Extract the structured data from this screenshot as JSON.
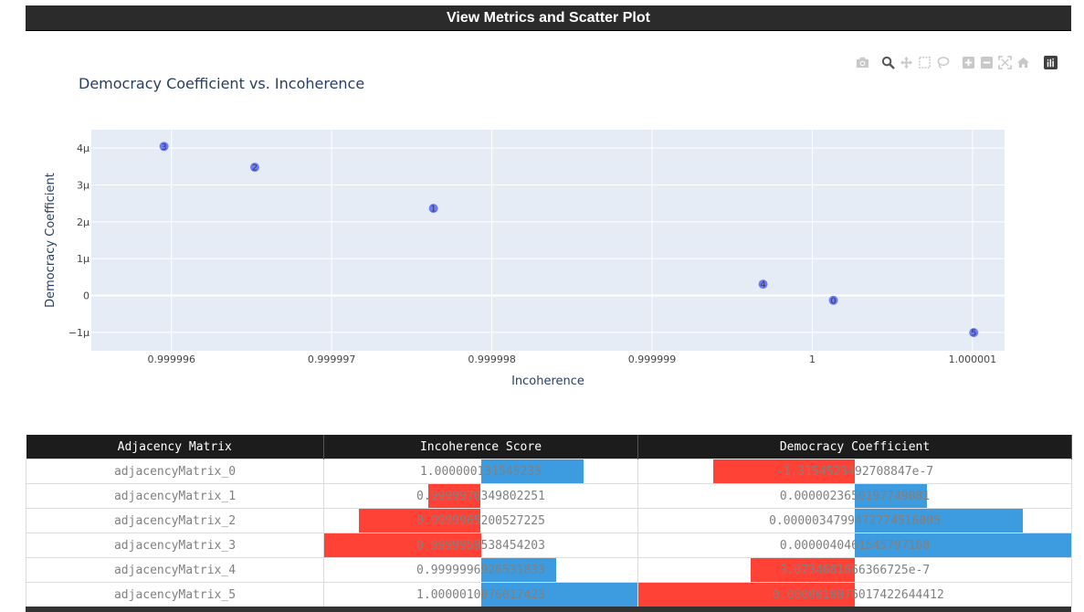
{
  "header": {
    "title": "View Metrics and Scatter Plot"
  },
  "modebar": {
    "icons": [
      "camera-icon",
      "zoom-icon",
      "pan-icon",
      "box-select-icon",
      "lasso-select-icon",
      "zoom-in-icon",
      "zoom-out-icon",
      "autoscale-icon",
      "reset-axes-icon",
      "plotly-logo-icon"
    ]
  },
  "chart_data": {
    "type": "scatter",
    "title": "Democracy Coefficient vs. Incoherence",
    "xlabel": "Incoherence",
    "ylabel": "Democracy Coefficient",
    "xlim": [
      0.9999955,
      1.0000012
    ],
    "ylim": [
      -1.5e-06,
      4.5e-06
    ],
    "xticks": [
      0.999996,
      0.999997,
      0.999998,
      0.999999,
      1,
      1.000001
    ],
    "xtick_labels": [
      "0.999996",
      "0.999997",
      "0.999998",
      "0.999999",
      "1",
      "1.000001"
    ],
    "yticks": [
      -1e-06,
      0,
      1e-06,
      2e-06,
      3e-06,
      4e-06
    ],
    "ytick_labels": [
      "−1μ",
      "0",
      "1μ",
      "2μ",
      "3μ",
      "4μ"
    ],
    "grid": true,
    "marker_color": "#636efa",
    "points": [
      {
        "label": "0",
        "x": 1.000000131545235,
        "y": -1.315452349270885e-07
      },
      {
        "label": "1",
        "x": 0.9999976349802251,
        "y": 2.3650197749081e-06
      },
      {
        "label": "2",
        "x": 0.9999965200527225,
        "y": 3.4799472774516e-06
      },
      {
        "label": "3",
        "x": 0.9999959538454203,
        "y": 4.0461545797169e-06
      },
      {
        "label": "4",
        "x": 0.9999996926531833,
        "y": 3.0734681666366725e-07
      },
      {
        "label": "5",
        "x": 1.0000010076017423,
        "y": -1.0076017422644e-06
      }
    ]
  },
  "table": {
    "columns": [
      "Adjacency Matrix",
      "Incoherence Score",
      "Democracy Coefficient"
    ],
    "colors": {
      "positive": "#3d9be0",
      "negative": "#ff4136"
    },
    "rows": [
      {
        "name": "adjacencyMatrix_0",
        "incoherence": "1.000000131545235",
        "democracy": "-1.3154523492708847e-7",
        "inc_num": 1.000000131545235,
        "dem_num": -1.3154523492708847e-07
      },
      {
        "name": "adjacencyMatrix_1",
        "incoherence": "0.9999976349802251",
        "democracy": "0.0000023650197749081",
        "inc_num": 0.9999976349802251,
        "dem_num": 2.3650197749081e-06
      },
      {
        "name": "adjacencyMatrix_2",
        "incoherence": "0.9999965200527225",
        "democracy": "0.0000034799472774516005",
        "inc_num": 0.9999965200527225,
        "dem_num": 3.4799472774516005e-06
      },
      {
        "name": "adjacencyMatrix_3",
        "incoherence": "0.9999959538454203",
        "democracy": "0.0000040461545797168",
        "inc_num": 0.9999959538454203,
        "dem_num": 4.0461545797168e-06
      },
      {
        "name": "adjacencyMatrix_4",
        "incoherence": "0.9999996926531833",
        "democracy": "3.0734681666366725e-7",
        "inc_num": 0.9999996926531833,
        "dem_num": 3.0734681666366725e-07
      },
      {
        "name": "adjacencyMatrix_5",
        "incoherence": "1.0000010076017423",
        "democracy": "-0.0000010076017422644412",
        "inc_num": 1.0000010076017423,
        "dem_num": -1.0076017422644412e-06
      }
    ]
  }
}
